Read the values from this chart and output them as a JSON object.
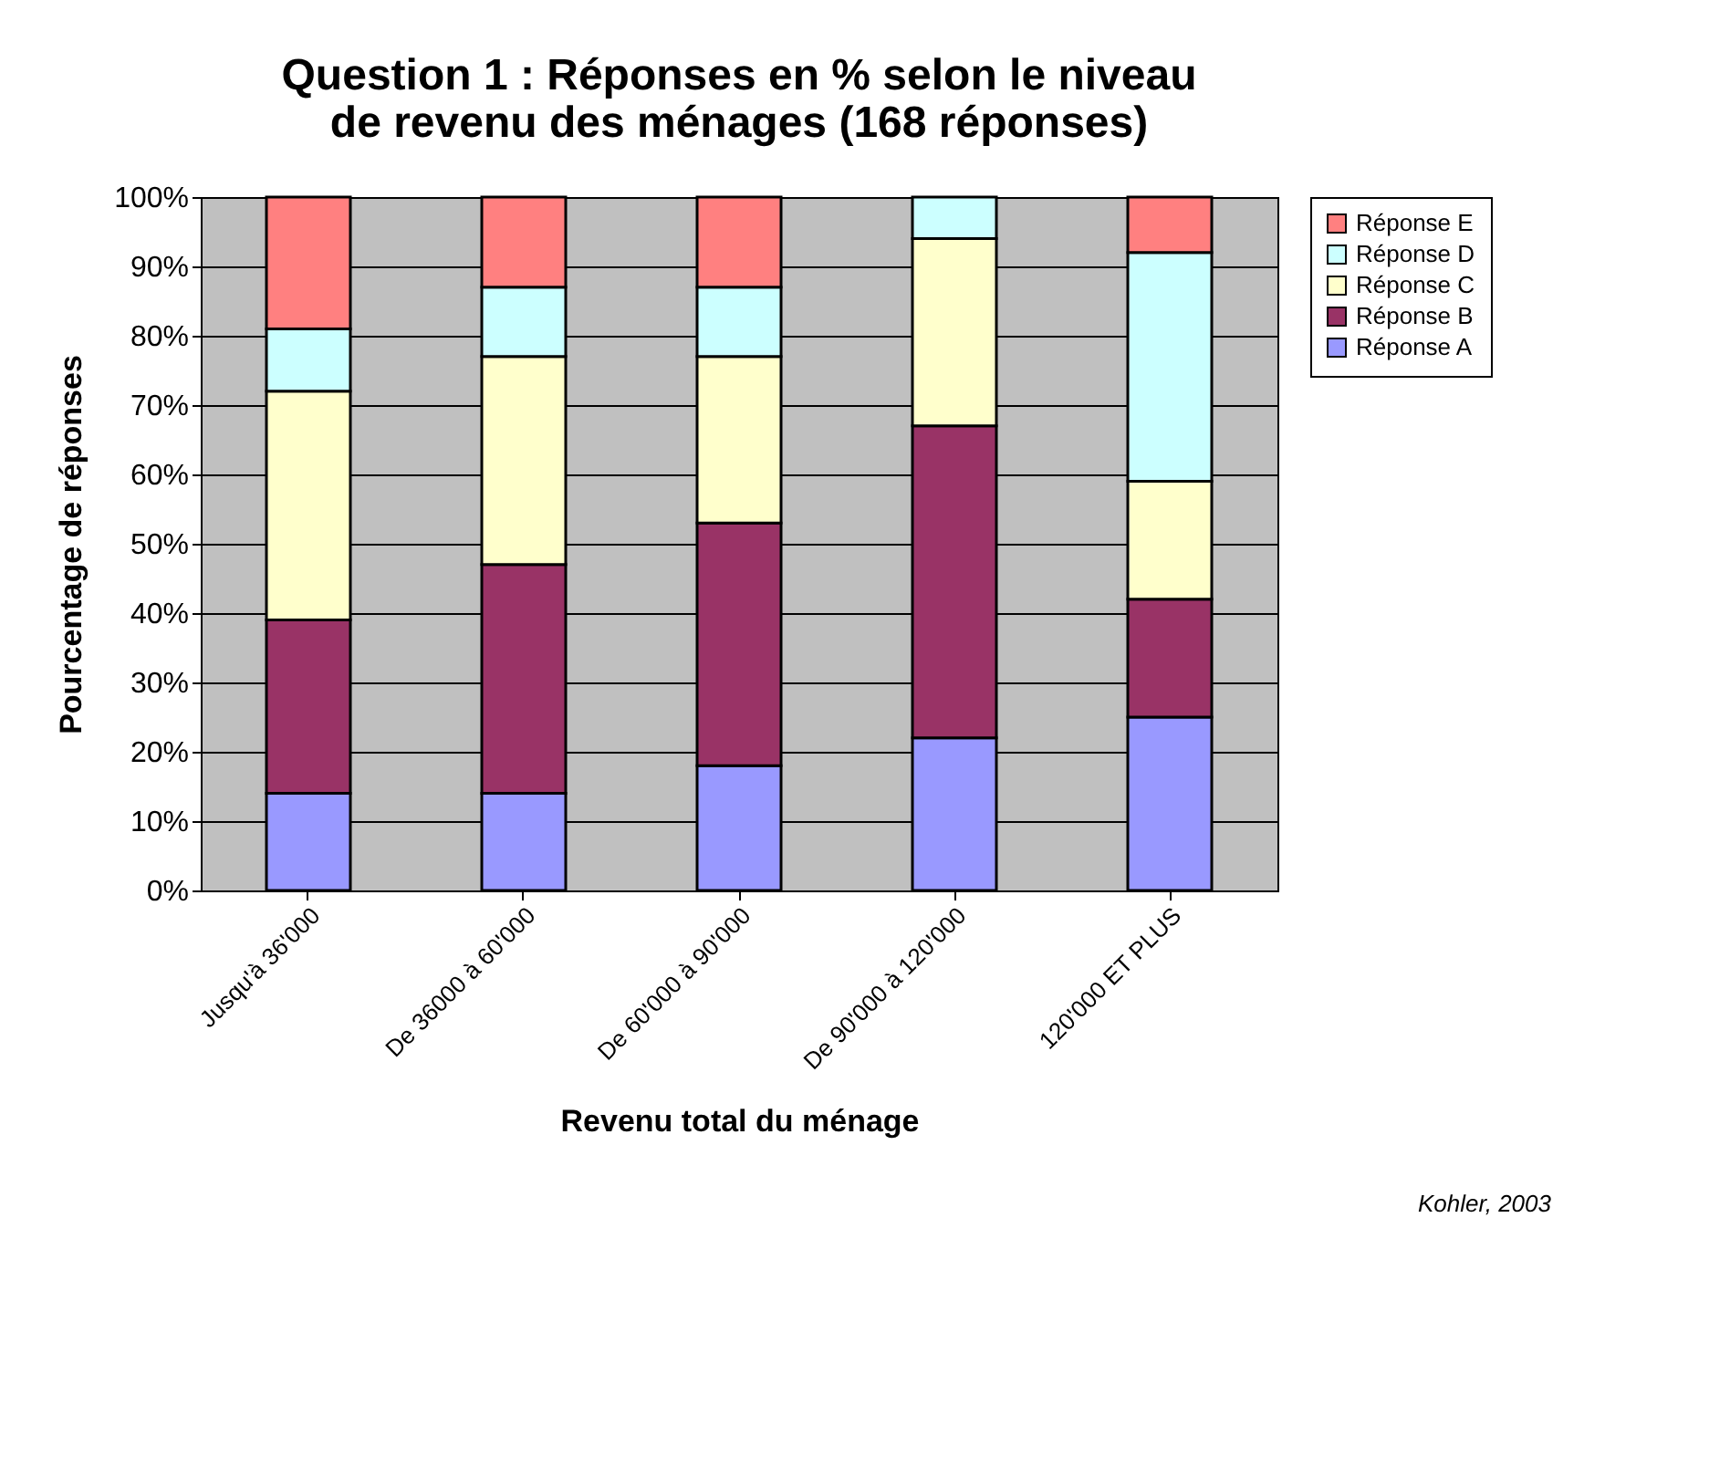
{
  "chart_data": {
    "type": "bar",
    "stacked": true,
    "title": "Question 1 : Réponses en % selon le niveau de revenu des ménages (168 réponses)",
    "xlabel": "Revenu total du ménage",
    "ylabel": "Pourcentage de réponses",
    "categories": [
      "Jusqu'à 36'000",
      "De 36000 à 60'000",
      "De 60'000 à 90'000",
      "De 90'000 à 120'000",
      "120'000 ET PLUS"
    ],
    "series": [
      {
        "name": "Réponse A",
        "color": "#9999ff",
        "values": [
          14,
          14,
          18,
          22,
          25
        ]
      },
      {
        "name": "Réponse B",
        "color": "#993366",
        "values": [
          25,
          33,
          35,
          45,
          17
        ]
      },
      {
        "name": "Réponse C",
        "color": "#ffffcc",
        "values": [
          33,
          30,
          24,
          27,
          17
        ]
      },
      {
        "name": "Réponse D",
        "color": "#ccffff",
        "values": [
          9,
          10,
          10,
          6,
          33
        ]
      },
      {
        "name": "Réponse E",
        "color": "#ff8080",
        "values": [
          19,
          13,
          13,
          0,
          8
        ]
      }
    ],
    "ylim": [
      0,
      100
    ],
    "yticks": [
      {
        "value": 0,
        "label": "0%"
      },
      {
        "value": 10,
        "label": "10%"
      },
      {
        "value": 20,
        "label": "20%"
      },
      {
        "value": 30,
        "label": "30%"
      },
      {
        "value": 40,
        "label": "40%"
      },
      {
        "value": 50,
        "label": "50%"
      },
      {
        "value": 60,
        "label": "60%"
      },
      {
        "value": 70,
        "label": "70%"
      },
      {
        "value": 80,
        "label": "80%"
      },
      {
        "value": 90,
        "label": "90%"
      },
      {
        "value": 100,
        "label": "100%"
      }
    ],
    "grid": "y",
    "legend": "right",
    "annotations": [
      "Kohler, 2003"
    ]
  }
}
